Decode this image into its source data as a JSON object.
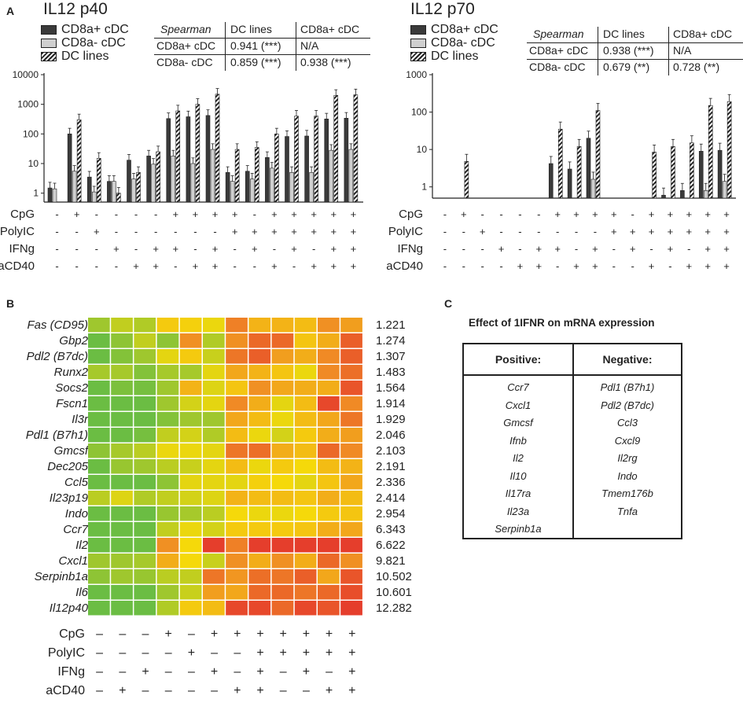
{
  "panel_labels": {
    "a": "A",
    "b": "B",
    "c": "C"
  },
  "colors": {
    "dark_bar": "#3a3a3a",
    "light_bar": "#d0d0d0",
    "hatch_ink": "#222222",
    "heat_green": "#5ab94a",
    "heat_yellow": "#f5d90a",
    "heat_orange": "#f08a25",
    "heat_red": "#e32d2d"
  },
  "legend": {
    "cd8a_pos": "CD8a+ cDC",
    "cd8a_neg": "CD8a- cDC",
    "dc_lines": "DC lines"
  },
  "treatment_labels": [
    "CpG",
    "PolyIC",
    "IFNg",
    "aCD40"
  ],
  "chart_data": [
    {
      "type": "bar",
      "title": "IL12 p40",
      "yscale": "log",
      "ylim": [
        0.5,
        10000
      ],
      "yticks": [
        "1",
        "10",
        "100",
        "1000",
        "10000"
      ],
      "series_names": [
        "CD8a+ cDC",
        "CD8a- cDC",
        "DC lines"
      ],
      "series": [
        {
          "name": "CD8a+ cDC",
          "values": [
            1.5,
            100,
            3.5,
            2.5,
            13,
            18,
            330,
            380,
            420,
            5,
            5.5,
            16,
            82,
            85,
            320,
            340
          ]
        },
        {
          "name": "CD8a- cDC",
          "values": [
            1.4,
            5.5,
            1.1,
            2.5,
            3,
            9.5,
            18,
            10,
            30,
            2.5,
            3,
            7,
            5,
            5,
            28,
            30
          ]
        },
        {
          "name": "DC lines",
          "values": [
            0.5,
            300,
            15,
            1,
            5,
            25,
            600,
            1000,
            2200,
            30,
            35,
            100,
            400,
            400,
            2000,
            2100
          ]
        }
      ],
      "treatments": {
        "CpG": [
          "-",
          "+",
          "-",
          "-",
          "-",
          "-",
          "+",
          "+",
          "+",
          "+",
          "-",
          "+",
          "+",
          "+",
          "+",
          "+"
        ],
        "PolyIC": [
          "-",
          "-",
          "+",
          "-",
          "-",
          "-",
          "-",
          "-",
          "-",
          "+",
          "+",
          "+",
          "+",
          "+",
          "+",
          "+"
        ],
        "IFNg": [
          "-",
          "-",
          "-",
          "+",
          "-",
          "+",
          "+",
          "-",
          "+",
          "-",
          "+",
          "-",
          "+",
          "-",
          "+",
          "+"
        ],
        "aCD40": [
          "-",
          "-",
          "-",
          "-",
          "+",
          "+",
          "-",
          "+",
          "+",
          "-",
          "-",
          "+",
          "-",
          "+",
          "+",
          "+"
        ]
      },
      "spearman": {
        "header": [
          "Spearman",
          "DC lines",
          "CD8a+ cDC"
        ],
        "rows": [
          [
            "CD8a+ cDC",
            "0.941 (***)",
            "N/A"
          ],
          [
            "CD8a- cDC",
            "0.859 (***)",
            "0.938 (***)"
          ]
        ]
      }
    },
    {
      "type": "bar",
      "title": "IL12 p70",
      "yscale": "log",
      "ylim": [
        0.5,
        1000
      ],
      "yticks": [
        "1",
        "10",
        "100",
        "1000"
      ],
      "series_names": [
        "CD8a+ cDC",
        "CD8a- cDC",
        "DC lines"
      ],
      "series": [
        {
          "name": "CD8a+ cDC",
          "values": [
            0.5,
            0.5,
            0.5,
            0.5,
            0.5,
            0.5,
            4.2,
            3,
            20,
            0.5,
            0.5,
            0.5,
            0.6,
            0.8,
            9,
            9.5
          ]
        },
        {
          "name": "CD8a- cDC",
          "values": [
            0.5,
            0.5,
            0.5,
            0.5,
            0.5,
            0.5,
            0.5,
            0.5,
            1.6,
            0.5,
            0.5,
            0.5,
            0.5,
            0.5,
            0.8,
            1.4
          ]
        },
        {
          "name": "DC lines",
          "values": [
            0.5,
            4.8,
            0.5,
            0.5,
            0.5,
            0.5,
            35,
            12,
            110,
            0.5,
            0.5,
            8.5,
            12,
            15,
            150,
            190
          ]
        }
      ],
      "treatments": {
        "CpG": [
          "-",
          "+",
          "-",
          "-",
          "-",
          "-",
          "+",
          "+",
          "+",
          "+",
          "-",
          "+",
          "+",
          "+",
          "+",
          "+"
        ],
        "PolyIC": [
          "-",
          "-",
          "+",
          "-",
          "-",
          "-",
          "-",
          "-",
          "-",
          "+",
          "+",
          "+",
          "+",
          "+",
          "+",
          "+"
        ],
        "IFNg": [
          "-",
          "-",
          "-",
          "+",
          "-",
          "+",
          "+",
          "-",
          "+",
          "-",
          "+",
          "-",
          "+",
          "-",
          "+",
          "+"
        ],
        "aCD40": [
          "-",
          "-",
          "-",
          "-",
          "+",
          "+",
          "-",
          "+",
          "+",
          "-",
          "-",
          "+",
          "-",
          "+",
          "+",
          "+"
        ]
      },
      "spearman": {
        "header": [
          "Spearman",
          "DC lines",
          "CD8a+ cDC"
        ],
        "rows": [
          [
            "CD8a+ cDC",
            "0.938 (***)",
            "N/A"
          ],
          [
            "CD8a- cDC",
            "0.679 (**)",
            "0.728 (**)"
          ]
        ]
      }
    },
    {
      "type": "heatmap",
      "rows": [
        "Fas (CD95)",
        "Gbp2",
        "Pdl2 (B7dc)",
        "Runx2",
        "Socs2",
        "Fscn1",
        "Il3r",
        "Pdl1 (B7h1)",
        "Gmcsf",
        "Dec205",
        "Ccl5",
        "Il23p19",
        "Indo",
        "Ccr7",
        "Il2",
        "Cxcl1",
        "Serpinb1a",
        "Il6",
        "Il12p40"
      ],
      "fold_values": [
        "1.221",
        "1.274",
        "1.307",
        "1.483",
        "1.564",
        "1.914",
        "1.929",
        "2.046",
        "2.103",
        "2.191",
        "2.336",
        "2.414",
        "2.954",
        "6.343",
        "6.622",
        "9.821",
        "10.502",
        "10.601",
        "12.282"
      ],
      "levels": [
        [
          0.2,
          0.3,
          0.25,
          0.5,
          0.48,
          0.42,
          0.75,
          0.58,
          0.58,
          0.55,
          0.7,
          0.65
        ],
        [
          0.05,
          0.15,
          0.3,
          0.15,
          0.7,
          0.25,
          0.7,
          0.82,
          0.82,
          0.52,
          0.6,
          0.85
        ],
        [
          0.05,
          0.12,
          0.2,
          0.4,
          0.5,
          0.32,
          0.78,
          0.85,
          0.65,
          0.6,
          0.72,
          0.85
        ],
        [
          0.22,
          0.22,
          0.12,
          0.22,
          0.22,
          0.4,
          0.62,
          0.58,
          0.52,
          0.42,
          0.72,
          0.8
        ],
        [
          0.05,
          0.1,
          0.08,
          0.2,
          0.58,
          0.38,
          0.52,
          0.7,
          0.62,
          0.6,
          0.6,
          0.88
        ],
        [
          0.05,
          0.05,
          0.05,
          0.2,
          0.35,
          0.4,
          0.72,
          0.6,
          0.4,
          0.55,
          0.92,
          0.72
        ],
        [
          0.05,
          0.05,
          0.05,
          0.12,
          0.2,
          0.2,
          0.62,
          0.55,
          0.42,
          0.55,
          0.62,
          0.78
        ],
        [
          0.05,
          0.05,
          0.08,
          0.3,
          0.35,
          0.25,
          0.55,
          0.42,
          0.35,
          0.5,
          0.6,
          0.65
        ],
        [
          0.15,
          0.22,
          0.28,
          0.42,
          0.42,
          0.4,
          0.78,
          0.8,
          0.6,
          0.55,
          0.82,
          0.72
        ],
        [
          0.05,
          0.18,
          0.2,
          0.28,
          0.32,
          0.4,
          0.55,
          0.42,
          0.5,
          0.45,
          0.55,
          0.58
        ],
        [
          0.05,
          0.05,
          0.05,
          0.15,
          0.4,
          0.4,
          0.4,
          0.48,
          0.45,
          0.4,
          0.52,
          0.62
        ],
        [
          0.28,
          0.38,
          0.25,
          0.3,
          0.35,
          0.38,
          0.58,
          0.55,
          0.55,
          0.52,
          0.6,
          0.55
        ],
        [
          0.05,
          0.05,
          0.05,
          0.18,
          0.22,
          0.28,
          0.45,
          0.42,
          0.42,
          0.45,
          0.5,
          0.52
        ],
        [
          0.05,
          0.05,
          0.05,
          0.3,
          0.42,
          0.35,
          0.5,
          0.5,
          0.5,
          0.52,
          0.6,
          0.62
        ],
        [
          0.05,
          0.05,
          0.05,
          0.7,
          0.45,
          0.95,
          0.75,
          0.95,
          0.95,
          0.95,
          0.95,
          0.95
        ],
        [
          0.2,
          0.2,
          0.22,
          0.6,
          0.45,
          0.32,
          0.7,
          0.6,
          0.7,
          0.6,
          0.82,
          0.7
        ],
        [
          0.15,
          0.2,
          0.18,
          0.28,
          0.3,
          0.78,
          0.68,
          0.8,
          0.78,
          0.85,
          0.62,
          0.88
        ],
        [
          0.05,
          0.05,
          0.05,
          0.2,
          0.32,
          0.65,
          0.62,
          0.82,
          0.82,
          0.78,
          0.82,
          0.9
        ],
        [
          0.05,
          0.05,
          0.05,
          0.25,
          0.5,
          0.55,
          0.92,
          0.92,
          0.82,
          0.92,
          0.88,
          0.95
        ]
      ],
      "treatments": {
        "CpG": [
          "-",
          "-",
          "-",
          "+",
          "-",
          "+",
          "+",
          "+",
          "+",
          "+",
          "+",
          "+"
        ],
        "PolyIC": [
          "-",
          "-",
          "-",
          "-",
          "+",
          "-",
          "-",
          "+",
          "+",
          "+",
          "+",
          "+"
        ],
        "IFNg": [
          "-",
          "-",
          "+",
          "-",
          "-",
          "+",
          "-",
          "+",
          "-",
          "+",
          "-",
          "+"
        ],
        "aCD40": [
          "-",
          "+",
          "-",
          "-",
          "-",
          "-",
          "+",
          "+",
          "-",
          "-",
          "+",
          "+"
        ]
      }
    }
  ],
  "panel_c": {
    "title": "Effect of 1IFNR on mRNA expression",
    "positive_header": "Positive:",
    "negative_header": "Negative:",
    "positive": [
      "Ccr7",
      "Cxcl1",
      "Gmcsf",
      "Ifnb",
      "Il2",
      "Il10",
      "Il17ra",
      "Il23a",
      "Serpinb1a"
    ],
    "negative": [
      "Pdl1 (B7h1)",
      "Pdl2 (B7dc)",
      "Ccl3",
      "Cxcl9",
      "Il2rg",
      "Indo",
      "Tmem176b",
      "Tnfa"
    ]
  }
}
